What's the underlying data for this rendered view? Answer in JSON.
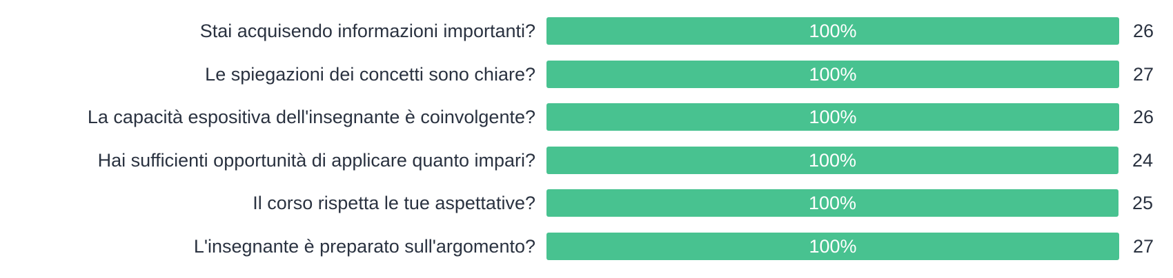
{
  "colors": {
    "bar": "#48c290",
    "text": "#2a3240",
    "bar_text": "#ffffff"
  },
  "chart_data": {
    "type": "bar",
    "orientation": "horizontal",
    "categories": [
      "Stai acquisendo informazioni importanti?",
      "Le spiegazioni dei concetti sono chiare?",
      "La capacità espositiva dell'insegnante è coinvolgente?",
      "Hai sufficienti opportunità di applicare quanto impari?",
      "Il corso rispetta le tue aspettative?",
      "L'insegnante è preparato sull'argomento?"
    ],
    "percent_labels": [
      "100%",
      "100%",
      "100%",
      "100%",
      "100%",
      "100%"
    ],
    "percent_values": [
      100,
      100,
      100,
      100,
      100,
      100
    ],
    "counts": [
      26,
      27,
      26,
      24,
      25,
      27
    ],
    "max_count": 27
  }
}
